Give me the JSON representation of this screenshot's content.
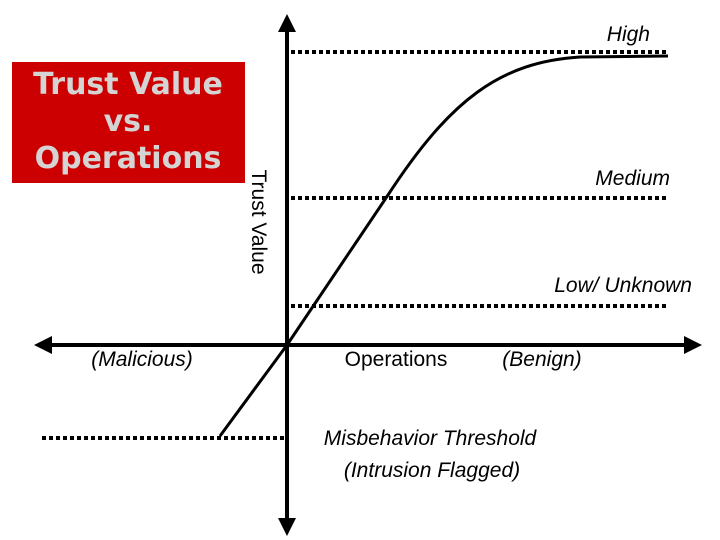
{
  "title": {
    "lines": [
      "Trust Value",
      "vs.",
      "Operations"
    ]
  },
  "axes": {
    "y_label": "Trust Value",
    "x_label": "Operations",
    "x_left": "(Malicious)",
    "x_right": "(Benign)"
  },
  "levels": {
    "high": "High",
    "medium": "Medium",
    "low": "Low/ Unknown"
  },
  "threshold": {
    "lines": [
      "Misbehavior Threshold",
      "(Intrusion Flagged)"
    ]
  }
}
